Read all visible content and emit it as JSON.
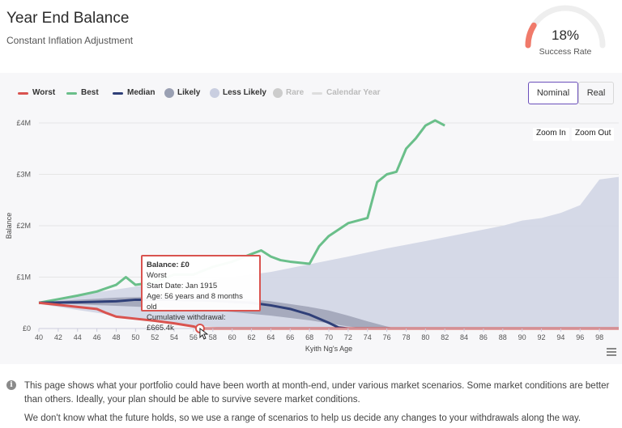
{
  "header": {
    "title": "Year End Balance",
    "subtitle": "Constant Inflation Adjustment"
  },
  "gauge": {
    "value": "18%",
    "label": "Success Rate",
    "fraction": 0.18,
    "color": "#f07a6a",
    "track_color": "#eeeeee"
  },
  "legend": [
    {
      "label": "Worst",
      "color": "#d9534f",
      "kind": "line"
    },
    {
      "label": "Best",
      "color": "#6abf8a",
      "kind": "line"
    },
    {
      "label": "Median",
      "color": "#2f3f78",
      "kind": "line"
    },
    {
      "label": "Likely",
      "color": "#9aa0b3",
      "kind": "dot"
    },
    {
      "label": "Less Likely",
      "color": "#c9cee0",
      "kind": "dot"
    },
    {
      "label": "Rare",
      "color": "#cccccc",
      "kind": "dot"
    },
    {
      "label": "Calendar Year",
      "color": "#dddddd",
      "kind": "line"
    }
  ],
  "toggles": {
    "nominal": "Nominal",
    "real": "Real"
  },
  "zoom": {
    "in": "Zoom In",
    "out": "Zoom Out"
  },
  "tooltip": {
    "title": "Balance: £0",
    "line1": "Worst",
    "line2": "Start Date: Jan 1915",
    "line3": "Age: 56 years and 8 months old",
    "line4": "Cumulative withdrawal: £665.4k"
  },
  "footer": {
    "info_icon": "info-icon",
    "text1": "This page shows what your portfolio could have been worth at month-end, under various market scenarios. Some market conditions are better than others. Ideally, your plan should be able to survive severe market conditions.",
    "text2": "We don't know what the future holds, so we use a range of scenarios to help us decide any changes to your withdrawals along the way."
  },
  "chart_data": {
    "type": "area",
    "ylabel": "Balance",
    "xlabel": "Kyith Ng's Age",
    "xlim": [
      40,
      100
    ],
    "ylim": [
      0,
      4000000
    ],
    "x_ticks": [
      "40",
      "42",
      "44",
      "46",
      "48",
      "50",
      "52",
      "54",
      "56",
      "58",
      "60",
      "62",
      "64",
      "66",
      "68",
      "70",
      "72",
      "74",
      "76",
      "78",
      "80",
      "82",
      "84",
      "86",
      "88",
      "90",
      "92",
      "94",
      "96",
      "98"
    ],
    "y_ticks": [
      {
        "value": 0,
        "label": "£0"
      },
      {
        "value": 1000000,
        "label": "£1M"
      },
      {
        "value": 2000000,
        "label": "£2M"
      },
      {
        "value": 3000000,
        "label": "£3M"
      },
      {
        "value": 4000000,
        "label": "£4M"
      }
    ],
    "bands": [
      {
        "name": "Less Likely",
        "color": "#d3d7e6",
        "x": [
          40,
          44,
          48,
          52,
          56,
          60,
          64,
          68,
          72,
          76,
          80,
          84,
          88,
          90,
          92,
          94,
          96,
          98,
          100
        ],
        "upper": [
          520000,
          650000,
          760000,
          870000,
          900000,
          1000000,
          1100000,
          1250000,
          1400000,
          1560000,
          1700000,
          1850000,
          2000000,
          2100000,
          2150000,
          2250000,
          2400000,
          2900000,
          2950000
        ],
        "lower": [
          480000,
          360000,
          250000,
          150000,
          60000,
          0,
          0,
          0,
          0,
          0,
          0,
          0,
          0,
          0,
          0,
          0,
          0,
          0,
          0
        ]
      },
      {
        "name": "Likely",
        "color": "#a3a8ba",
        "x": [
          40,
          44,
          48,
          52,
          56,
          60,
          64,
          68,
          70,
          72,
          74,
          76,
          77
        ],
        "upper": [
          510000,
          560000,
          600000,
          620000,
          620000,
          600000,
          530000,
          420000,
          350000,
          250000,
          140000,
          40000,
          0
        ],
        "lower": [
          490000,
          470000,
          440000,
          410000,
          370000,
          320000,
          250000,
          160000,
          100000,
          40000,
          0,
          0,
          0
        ]
      }
    ],
    "series": [
      {
        "name": "Best",
        "color": "#6abf8a",
        "x": [
          40,
          42,
          44,
          46,
          48,
          49,
          50,
          52,
          54,
          56,
          58,
          60,
          62,
          63,
          64,
          65,
          66,
          67,
          68,
          69,
          70,
          72,
          74,
          75,
          76,
          77,
          78,
          79,
          80,
          81,
          82
        ],
        "y": [
          500000,
          570000,
          640000,
          720000,
          850000,
          1000000,
          850000,
          900000,
          1050000,
          1050000,
          1200000,
          1300000,
          1450000,
          1520000,
          1400000,
          1330000,
          1300000,
          1280000,
          1260000,
          1600000,
          1800000,
          2050000,
          2150000,
          2850000,
          3000000,
          3050000,
          3500000,
          3700000,
          3950000,
          4050000,
          3950000
        ]
      },
      {
        "name": "Median",
        "color": "#2f3f78",
        "x": [
          40,
          44,
          48,
          50,
          54,
          58,
          62,
          64,
          66,
          68,
          70,
          71,
          72,
          100
        ],
        "y": [
          500000,
          510000,
          530000,
          560000,
          560000,
          540000,
          500000,
          450000,
          380000,
          270000,
          110000,
          20000,
          0,
          0
        ]
      },
      {
        "name": "Worst",
        "color": "#d9534f",
        "x": [
          40,
          42,
          44,
          45,
          46,
          47,
          48,
          50,
          52,
          54,
          56,
          56.67,
          100
        ],
        "y": [
          500000,
          460000,
          420000,
          400000,
          380000,
          300000,
          230000,
          190000,
          150000,
          100000,
          40000,
          0,
          0
        ]
      }
    ],
    "highlight": {
      "series": "Worst",
      "x": 56.67,
      "y": 0
    }
  }
}
